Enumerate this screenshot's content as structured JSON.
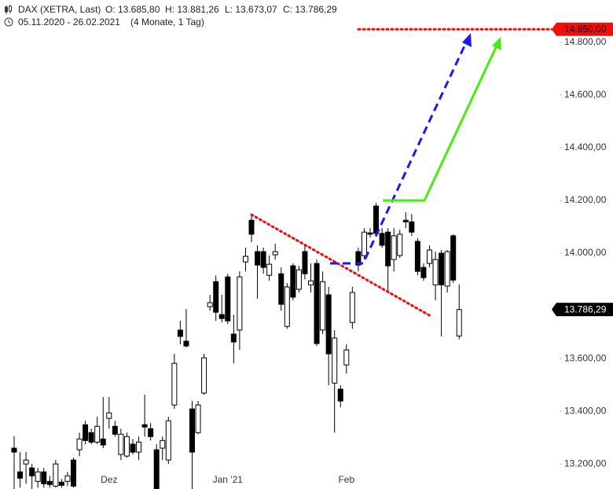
{
  "chart_data": {
    "type": "candlestick",
    "header": {
      "symbol": "DAX (XETRA, Last)",
      "ohlc": [
        "O: 13.685,80",
        "H: 13.881,26",
        "L: 13.673,07",
        "C: 13.786,29"
      ],
      "range": "05.11.2020 - 26.02.2021",
      "period": "(4 Monate, 1 Tag)"
    },
    "categories": [
      null,
      null,
      null,
      null,
      null,
      null,
      null,
      null,
      null,
      null,
      null,
      null,
      null,
      null,
      null,
      null,
      "Dez",
      null,
      null,
      null,
      null,
      null,
      null,
      null,
      null,
      null,
      null,
      null,
      null,
      null,
      null,
      null,
      null,
      null,
      null,
      null,
      "Jan '21",
      null,
      null,
      null,
      null,
      null,
      null,
      null,
      null,
      null,
      null,
      null,
      null,
      null,
      null,
      null,
      null,
      null,
      null,
      null,
      "Feb",
      null,
      null,
      null,
      null,
      null,
      null,
      null,
      null,
      null,
      null,
      null,
      null,
      null,
      null,
      null,
      null,
      null,
      null,
      null
    ],
    "series": [
      {
        "up_color": "#ffffff",
        "down_color": "#000000",
        "open": [
          13260,
          13170,
          13200,
          13185,
          13134,
          13170,
          13134,
          13116,
          13131,
          13134,
          13215,
          13254,
          13349,
          13319,
          13283,
          13295,
          13373,
          13343,
          13236,
          13230,
          13275,
          13245,
          13349,
          13334,
          13254,
          13260,
          13215,
          13424,
          13708,
          13666,
          13409,
          13319,
          13469,
          13797,
          13892,
          13767,
          13910,
          13693,
          13708,
          13967,
          14125,
          14006,
          14006,
          13916,
          13994,
          13922,
          13722,
          13952,
          13863,
          14006,
          13880,
          13961,
          13708,
          13842,
          13507,
          13484,
          13576,
          13737,
          14006,
          13991,
          14077,
          14179,
          14075,
          14080,
          13976,
          13991,
          14125,
          14119,
          14045,
          13946,
          13961,
          13880,
          14000,
          13875,
          14066,
          13685.8
        ],
        "high": [
          13305,
          13245,
          13245,
          13200,
          13185,
          13185,
          13155,
          13215,
          13143,
          13170,
          13224,
          13319,
          13364,
          13334,
          13379,
          13454,
          13454,
          13364,
          13334,
          13319,
          13295,
          13304,
          13463,
          13355,
          13275,
          13304,
          13379,
          13618,
          13743,
          13788,
          13439,
          13439,
          13618,
          13842,
          13916,
          13842,
          13922,
          13767,
          13931,
          14021,
          14149,
          14030,
          14021,
          13991,
          14036,
          13946,
          13887,
          13961,
          13952,
          14036,
          13961,
          13976,
          13931,
          13872,
          13708,
          13499,
          13654,
          13872,
          14021,
          14095,
          14095,
          14191,
          14095,
          14095,
          14095,
          14089,
          14155,
          14149,
          14057,
          13961,
          14030,
          14006,
          14012,
          14012,
          14072,
          13881.26
        ],
        "low": [
          13105,
          13110,
          13125,
          13105,
          13110,
          13110,
          13110,
          13110,
          13110,
          13116,
          13110,
          13230,
          13275,
          13275,
          13275,
          13260,
          13334,
          13304,
          13215,
          13224,
          13236,
          13215,
          13304,
          13289,
          13100,
          13215,
          13200,
          13409,
          13654,
          13642,
          13100,
          13313,
          13463,
          13782,
          13743,
          13737,
          13731,
          13582,
          13633,
          13931,
          14042,
          13827,
          13922,
          13895,
          13976,
          13782,
          13713,
          13821,
          13851,
          13901,
          13851,
          13648,
          13693,
          13499,
          13319,
          13415,
          13543,
          13713,
          13931,
          13976,
          14060,
          14066,
          14021,
          13857,
          13931,
          13982,
          14095,
          14066,
          13916,
          13895,
          13946,
          13821,
          13684,
          13851,
          13887,
          13673.07
        ],
        "close": [
          13245,
          13146,
          13215,
          13155,
          13170,
          13125,
          13122,
          13200,
          13119,
          13155,
          13116,
          13295,
          13289,
          13283,
          13343,
          13272,
          13394,
          13313,
          13313,
          13304,
          13245,
          13283,
          13340,
          13304,
          13105,
          13289,
          13364,
          13582,
          13684,
          13648,
          13245,
          13424,
          13603,
          13812,
          13776,
          13752,
          13743,
          13663,
          13910,
          13988,
          14072,
          13955,
          13946,
          13958,
          14006,
          13806,
          13872,
          13833,
          13937,
          13922,
          13895,
          13657,
          13892,
          13618,
          13678,
          13439,
          13633,
          13851,
          13955,
          14080,
          14072,
          14075,
          14030,
          13952,
          14066,
          14072,
          14119,
          14080,
          13931,
          13907,
          14012,
          13976,
          13880,
          14006,
          13898,
          13786.29
        ]
      }
    ],
    "ylim": [
      13105,
      14961
    ],
    "yticks": [
      {
        "value": 13200,
        "label": "13.200,00"
      },
      {
        "value": 13400,
        "label": "13.400,00"
      },
      {
        "value": 13600,
        "label": "13.600,00"
      },
      {
        "value": 14000,
        "label": "14.000,00"
      },
      {
        "value": 14200,
        "label": "14.200,00"
      },
      {
        "value": 14400,
        "label": "14.400,00"
      },
      {
        "value": 14600,
        "label": "14.600,00"
      },
      {
        "value": 14800,
        "label": "14.800,00"
      }
    ],
    "price_tags": [
      {
        "value": 14850,
        "label": "14.850,00",
        "color": "#f20d0d",
        "text_color": "#000000",
        "line": true
      },
      {
        "value": 13786.29,
        "label": "13.786,29",
        "color": "#000000",
        "text_color": "#ffffff",
        "line": false
      }
    ]
  }
}
